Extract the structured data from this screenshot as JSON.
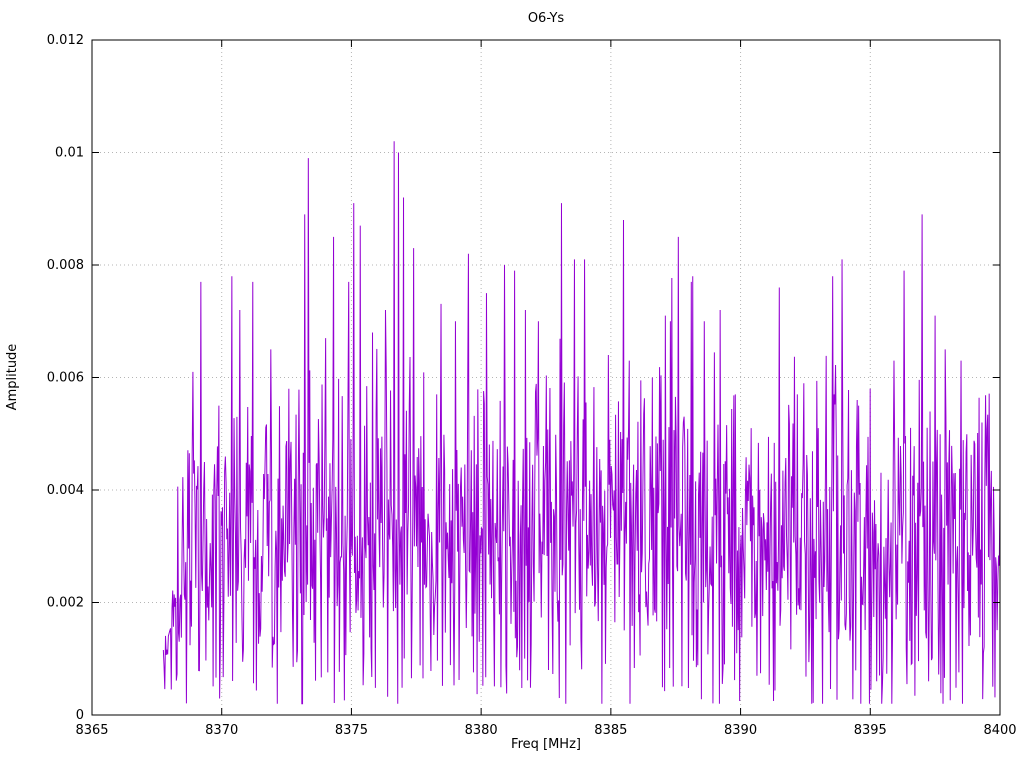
{
  "chart_data": {
    "type": "line",
    "title": "O6-Ys",
    "xlabel": "Freq [MHz]",
    "ylabel": "Amplitude",
    "xlim": [
      8365,
      8400
    ],
    "ylim": [
      0,
      0.012
    ],
    "xticks": [
      8365,
      8370,
      8375,
      8380,
      8385,
      8390,
      8395,
      8400
    ],
    "yticks": [
      0,
      0.002,
      0.004,
      0.006,
      0.008,
      0.01,
      0.012
    ],
    "grid": true,
    "legend": "none",
    "line_color": "#9400d3",
    "grid_color": "#b5b5b5",
    "series_name": "O6-Ys spectrum",
    "signal": {
      "description": "dense noisy amplitude spectrum, no data before x_start",
      "x_start": 8367.75,
      "x_end": 8400,
      "points_per_mhz": 36,
      "baseline_mean": 0.0031,
      "baseline_sd": 0.00135,
      "min_value": 0.0002,
      "background_max": 0.0078,
      "ramp_end_x": 8369,
      "peaks": [
        {
          "x": 8368.0,
          "y": 0.0015
        },
        {
          "x": 8368.9,
          "y": 0.0061
        },
        {
          "x": 8369.2,
          "y": 0.0077
        },
        {
          "x": 8369.9,
          "y": 0.0055
        },
        {
          "x": 8370.4,
          "y": 0.0078
        },
        {
          "x": 8370.7,
          "y": 0.0072
        },
        {
          "x": 8371.2,
          "y": 0.0077
        },
        {
          "x": 8371.9,
          "y": 0.0065
        },
        {
          "x": 8372.6,
          "y": 0.0058
        },
        {
          "x": 8373.2,
          "y": 0.0089
        },
        {
          "x": 8373.35,
          "y": 0.0099
        },
        {
          "x": 8374.0,
          "y": 0.0067
        },
        {
          "x": 8374.3,
          "y": 0.0085
        },
        {
          "x": 8374.9,
          "y": 0.0077
        },
        {
          "x": 8375.1,
          "y": 0.0091
        },
        {
          "x": 8375.35,
          "y": 0.0087
        },
        {
          "x": 8375.8,
          "y": 0.0068
        },
        {
          "x": 8376.3,
          "y": 0.0072
        },
        {
          "x": 8376.65,
          "y": 0.0102
        },
        {
          "x": 8376.8,
          "y": 0.01
        },
        {
          "x": 8377.0,
          "y": 0.0092
        },
        {
          "x": 8377.4,
          "y": 0.0083
        },
        {
          "x": 8378.3,
          "y": 0.0057
        },
        {
          "x": 8379.0,
          "y": 0.007
        },
        {
          "x": 8379.5,
          "y": 0.0082
        },
        {
          "x": 8380.2,
          "y": 0.0075
        },
        {
          "x": 8380.9,
          "y": 0.008
        },
        {
          "x": 8381.3,
          "y": 0.0079
        },
        {
          "x": 8381.7,
          "y": 0.0072
        },
        {
          "x": 8382.2,
          "y": 0.007
        },
        {
          "x": 8383.1,
          "y": 0.0091
        },
        {
          "x": 8383.6,
          "y": 0.0081
        },
        {
          "x": 8384.0,
          "y": 0.0081
        },
        {
          "x": 8384.9,
          "y": 0.0064
        },
        {
          "x": 8385.5,
          "y": 0.0088
        },
        {
          "x": 8385.7,
          "y": 0.0063
        },
        {
          "x": 8386.6,
          "y": 0.006
        },
        {
          "x": 8387.1,
          "y": 0.0071
        },
        {
          "x": 8387.3,
          "y": 0.007
        },
        {
          "x": 8387.6,
          "y": 0.0085
        },
        {
          "x": 8388.1,
          "y": 0.0077
        },
        {
          "x": 8388.6,
          "y": 0.007
        },
        {
          "x": 8389.2,
          "y": 0.0072
        },
        {
          "x": 8389.8,
          "y": 0.0057
        },
        {
          "x": 8390.4,
          "y": 0.0051
        },
        {
          "x": 8391.5,
          "y": 0.0076
        },
        {
          "x": 8392.2,
          "y": 0.0057
        },
        {
          "x": 8393.0,
          "y": 0.0051
        },
        {
          "x": 8393.6,
          "y": 0.0057
        },
        {
          "x": 8393.9,
          "y": 0.0081
        },
        {
          "x": 8394.5,
          "y": 0.0056
        },
        {
          "x": 8395.0,
          "y": 0.0058
        },
        {
          "x": 8395.9,
          "y": 0.0063
        },
        {
          "x": 8396.3,
          "y": 0.0079
        },
        {
          "x": 8397.0,
          "y": 0.0089
        },
        {
          "x": 8397.5,
          "y": 0.0071
        },
        {
          "x": 8397.9,
          "y": 0.0065
        },
        {
          "x": 8398.5,
          "y": 0.0063
        },
        {
          "x": 8399.3,
          "y": 0.0052
        }
      ]
    }
  }
}
